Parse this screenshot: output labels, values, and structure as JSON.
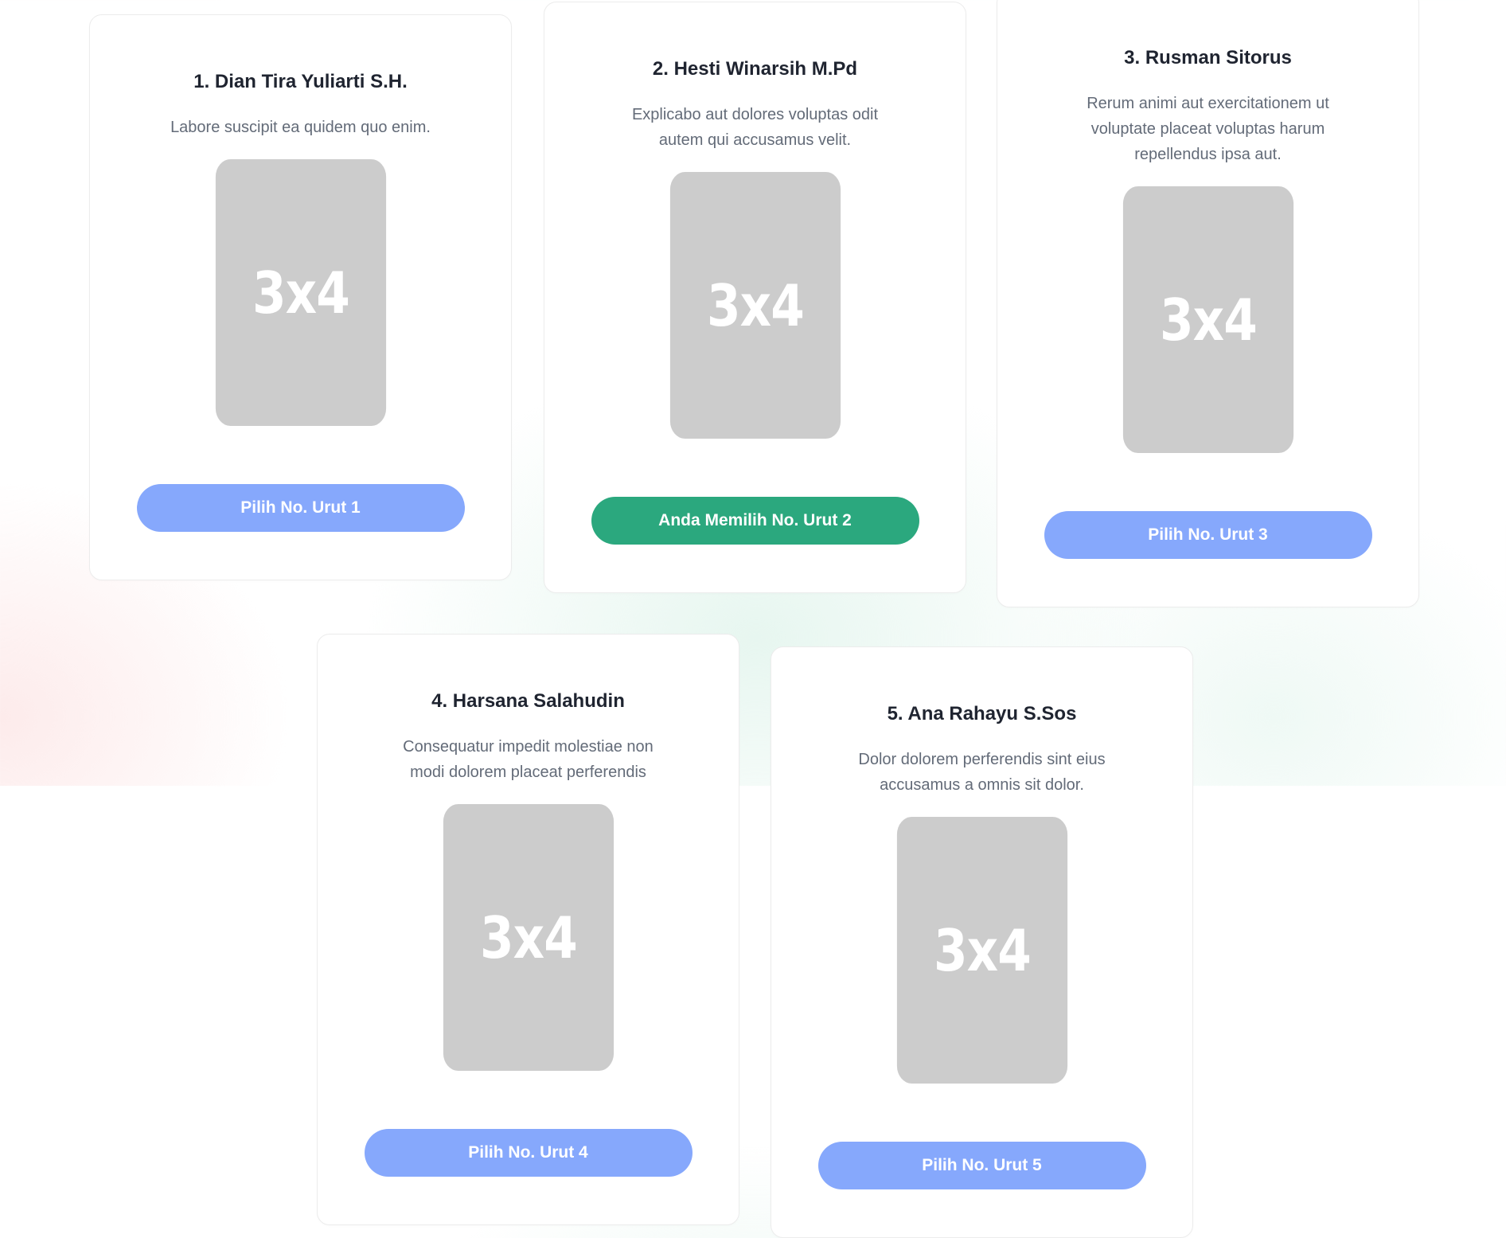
{
  "candidates": [
    {
      "title": "1. Dian Tira Yuliarti S.H.",
      "description": "Labore suscipit ea quidem quo enim.",
      "photo_label": "3x4",
      "button_label": "Pilih No. Urut 1",
      "selected": false
    },
    {
      "title": "2. Hesti Winarsih M.Pd",
      "description": "Explicabo aut dolores voluptas odit autem qui accusamus velit.",
      "photo_label": "3x4",
      "button_label": "Anda Memilih No. Urut 2",
      "selected": true
    },
    {
      "title": "3. Rusman Sitorus",
      "description": "Rerum animi aut exercitationem ut voluptate placeat voluptas harum repellendus ipsa aut.",
      "photo_label": "3x4",
      "button_label": "Pilih No. Urut 3",
      "selected": false
    },
    {
      "title": "4. Harsana Salahudin",
      "description": "Consequatur impedit molestiae non modi dolorem placeat perferendis",
      "photo_label": "3x4",
      "button_label": "Pilih No. Urut 4",
      "selected": false
    },
    {
      "title": "5. Ana Rahayu S.Sos",
      "description": "Dolor dolorem perferendis sint eius accusamus a omnis sit dolor.",
      "photo_label": "3x4",
      "button_label": "Pilih No. Urut 5",
      "selected": false
    }
  ],
  "colors": {
    "pick_button": "#86a8fc",
    "selected_button": "#2ba87e",
    "photo_placeholder": "#cccccc"
  }
}
